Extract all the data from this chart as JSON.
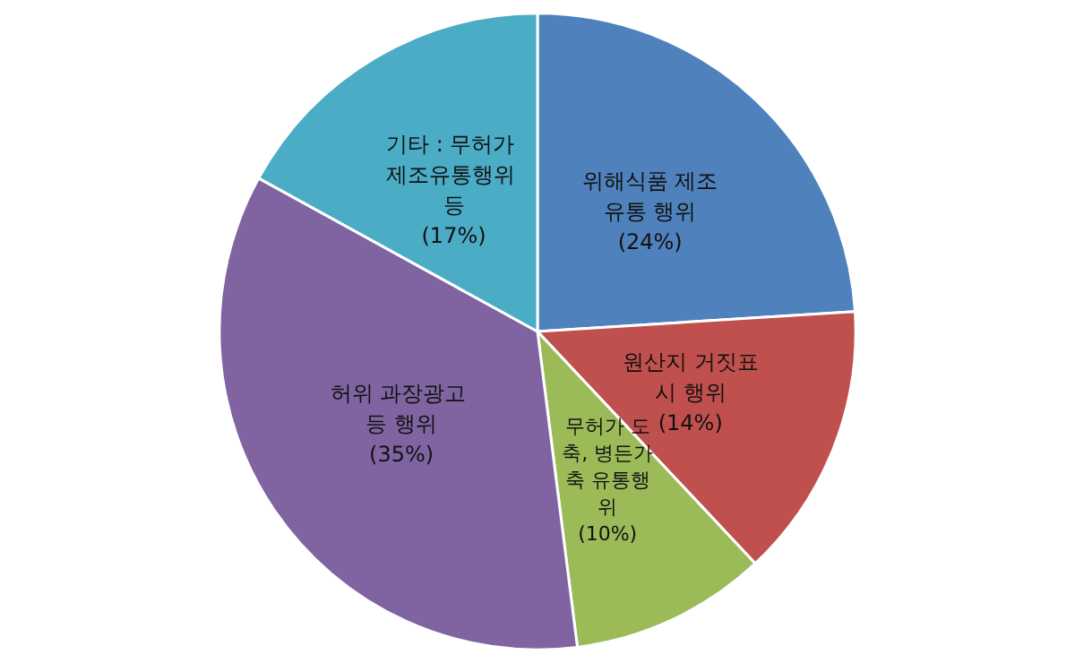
{
  "chart_data": {
    "type": "pie",
    "categories": [
      "위해식품 제조유통 행위",
      "원산지 거짓표시 행위",
      "무허가 도축, 병든가축 유통행위",
      "허위 과장광고 등 행위",
      "기타 : 무허가 제조유통행위 등"
    ],
    "values": [
      24,
      14,
      10,
      35,
      17
    ],
    "colors": [
      "#4f81bd",
      "#c0504d",
      "#9bbb59",
      "#8064a2",
      "#4bacc6"
    ],
    "value_labels": [
      "(24%)",
      "(14%)",
      "(10%)",
      "(35%)",
      "(17%)"
    ]
  }
}
